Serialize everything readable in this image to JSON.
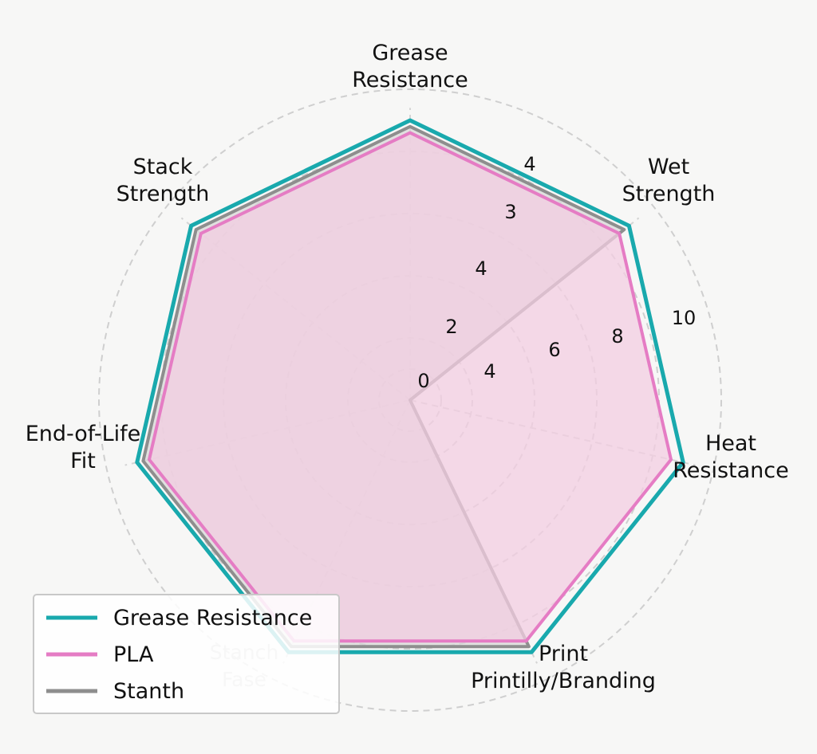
{
  "chart_data": {
    "type": "radar",
    "title": "",
    "axes": [
      "Grease Resistance",
      "Wet Strength",
      "Heat Resistance",
      "Print Printilly/Branding",
      "Stanch Fase",
      "End-of-Life Fit",
      "Stack Strength"
    ],
    "axis_label_lines": [
      [
        "Grease",
        "Resistance"
      ],
      [
        "Wet",
        "Strength"
      ],
      [
        "Heat",
        "Resistance"
      ],
      [
        "Print",
        "Printilly/Branding"
      ],
      [
        "Stanch",
        "Fase"
      ],
      [
        "End-of-Life",
        "Fit"
      ],
      [
        "Stack",
        "Strength"
      ]
    ],
    "rlim": [
      0,
      10
    ],
    "grid": true,
    "radial_ticks": {
      "upper_sequence": [
        "0",
        "2",
        "4",
        "3",
        "4"
      ],
      "lower_sequence": [
        "4",
        "6",
        "8",
        "10"
      ]
    },
    "legend_position": "bottom-left",
    "series": [
      {
        "name": "Grease Resistance",
        "color": "#19a9ad",
        "values": [
          9.0,
          9.0,
          9.0,
          9.0,
          9.0,
          9.0,
          9.0
        ],
        "filled": false
      },
      {
        "name": "PLA",
        "color": "#e57cc4",
        "fill": "#f3cde2",
        "values": [
          8.6,
          8.6,
          8.6,
          8.6,
          8.6,
          8.6,
          8.6
        ],
        "filled": true
      },
      {
        "name": "Stanth",
        "color": "#8e8e8e",
        "fill": "#d5d5d5",
        "values": [
          8.8,
          8.8,
          0,
          8.8,
          8.8,
          8.8,
          8.8
        ],
        "filled": true
      }
    ]
  }
}
